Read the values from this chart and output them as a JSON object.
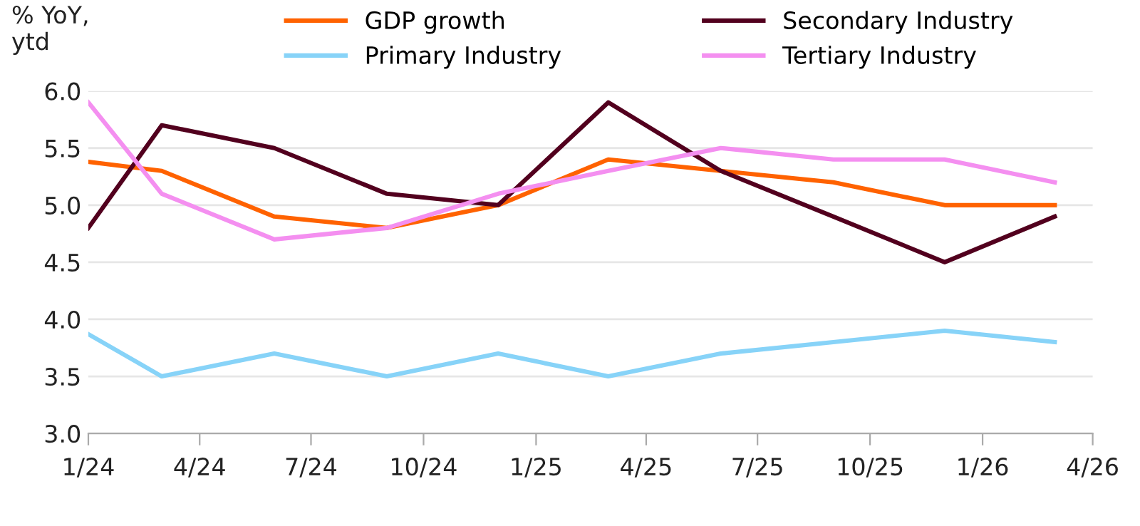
{
  "chart_data": {
    "type": "line",
    "ylabel": "% YoY,\nytd",
    "x": [
      "2024-01-01",
      "2024-03-01",
      "2024-06-01",
      "2024-09-01",
      "2024-12-01",
      "2025-03-01",
      "2025-06-01",
      "2025-09-01",
      "2025-12-01",
      "2026-03-01"
    ],
    "series": [
      {
        "name": "GDP growth",
        "color": "#ff6200",
        "values": [
          5.38,
          5.3,
          4.9,
          4.8,
          5.0,
          5.4,
          5.3,
          5.2,
          5.0,
          5.0
        ]
      },
      {
        "name": "Primary Industry",
        "color": "#87d3f8",
        "values": [
          3.87,
          3.5,
          3.7,
          3.5,
          3.7,
          3.5,
          3.7,
          3.8,
          3.9,
          3.8
        ]
      },
      {
        "name": "Secondary Industry",
        "color": "#52001e",
        "values": [
          4.8,
          5.7,
          5.5,
          5.1,
          5.0,
          5.9,
          5.3,
          4.9,
          4.5,
          4.9
        ]
      },
      {
        "name": "Tertiary Industry",
        "color": "#f48ff0",
        "values": [
          5.9,
          5.1,
          4.7,
          4.8,
          5.1,
          5.3,
          5.5,
          5.4,
          5.4,
          5.2
        ]
      }
    ],
    "xlim": [
      "2024-01-01",
      "2026-04-01"
    ],
    "xticks": [
      {
        "value": "2024-01-01",
        "label": "1/24"
      },
      {
        "value": "2024-04-01",
        "label": "4/24"
      },
      {
        "value": "2024-07-01",
        "label": "7/24"
      },
      {
        "value": "2024-10-01",
        "label": "10/24"
      },
      {
        "value": "2025-01-01",
        "label": "1/25"
      },
      {
        "value": "2025-04-01",
        "label": "4/25"
      },
      {
        "value": "2025-07-01",
        "label": "7/25"
      },
      {
        "value": "2025-10-01",
        "label": "10/25"
      },
      {
        "value": "2026-01-01",
        "label": "1/26"
      },
      {
        "value": "2026-04-01",
        "label": "4/26"
      }
    ],
    "ylim": [
      3.0,
      6.0
    ],
    "yticks": [
      {
        "value": 3.0,
        "label": "3.0"
      },
      {
        "value": 3.5,
        "label": "3.5"
      },
      {
        "value": 4.0,
        "label": "4.0"
      },
      {
        "value": 4.5,
        "label": "4.5"
      },
      {
        "value": 5.0,
        "label": "5.0"
      },
      {
        "value": 5.5,
        "label": "5.5"
      },
      {
        "value": 6.0,
        "label": "6.0"
      }
    ],
    "grid": "y",
    "legend": "top",
    "marker": "none",
    "line_style": "solid"
  }
}
